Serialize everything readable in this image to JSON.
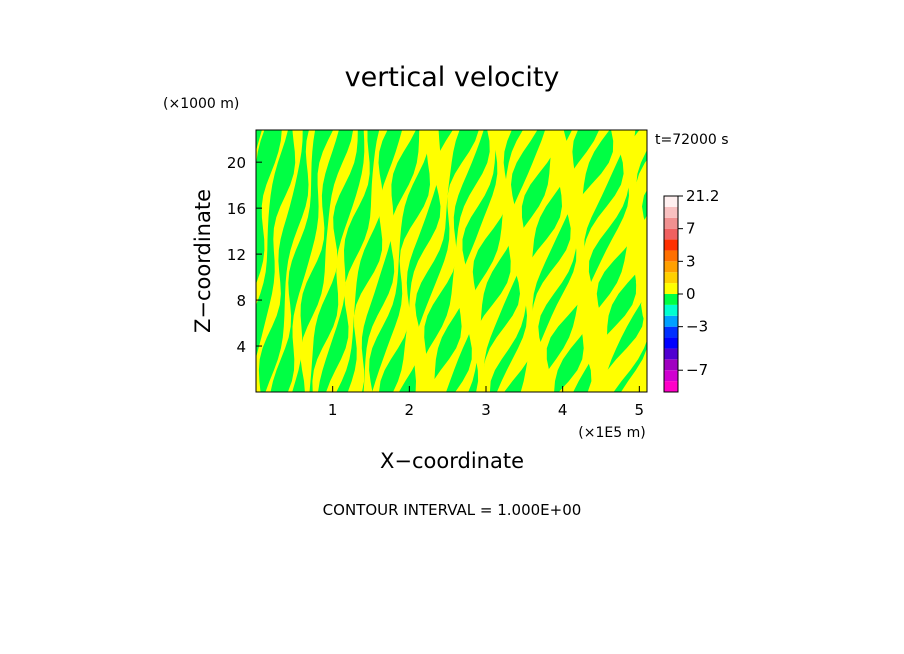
{
  "chart_data": {
    "type": "heatmap",
    "title": "vertical velocity",
    "xlabel": "X−coordinate",
    "ylabel": "Z−coordinate",
    "x_scale_label": "(×1E5 m)",
    "y_scale_label": "(×1000 m)",
    "time_label": "t=72000 s",
    "footer": "CONTOUR INTERVAL = 1.000E+00",
    "xlim": [
      0,
      5.1
    ],
    "ylim": [
      0,
      22.8
    ],
    "x_ticks": [
      {
        "value": 1,
        "label": "1"
      },
      {
        "value": 2,
        "label": "2"
      },
      {
        "value": 3,
        "label": "3"
      },
      {
        "value": 4,
        "label": "4"
      },
      {
        "value": 5,
        "label": "5"
      }
    ],
    "y_ticks": [
      {
        "value": 4,
        "label": "4"
      },
      {
        "value": 8,
        "label": "8"
      },
      {
        "value": 12,
        "label": "12"
      },
      {
        "value": 16,
        "label": "16"
      },
      {
        "value": 20,
        "label": "20"
      }
    ],
    "field_colors": {
      "positive": "#ffff00",
      "negative": "#00ff44"
    },
    "colorbar": {
      "levels": [
        -10,
        -8,
        -7,
        -6,
        -5,
        -4,
        -3,
        -2,
        -1,
        0,
        1,
        2,
        3,
        4,
        5,
        7,
        10,
        14,
        21.2
      ],
      "colors": [
        "#ff00c8",
        "#d000d0",
        "#a000c0",
        "#5000d0",
        "#0000ff",
        "#0030ff",
        "#00a0ff",
        "#00ffd0",
        "#00ff44",
        "#ffff00",
        "#ffd000",
        "#ffa000",
        "#ff7000",
        "#ff3000",
        "#f06060",
        "#f09090",
        "#f8c0c0",
        "#fff0f0"
      ],
      "tick_labels": [
        {
          "value": 21.2,
          "label": "21.2"
        },
        {
          "value": 7,
          "label": "7"
        },
        {
          "value": 3,
          "label": "3"
        },
        {
          "value": 0,
          "label": "0"
        },
        {
          "value": -3,
          "label": "−3"
        },
        {
          "value": -7,
          "label": "−7"
        }
      ]
    }
  }
}
